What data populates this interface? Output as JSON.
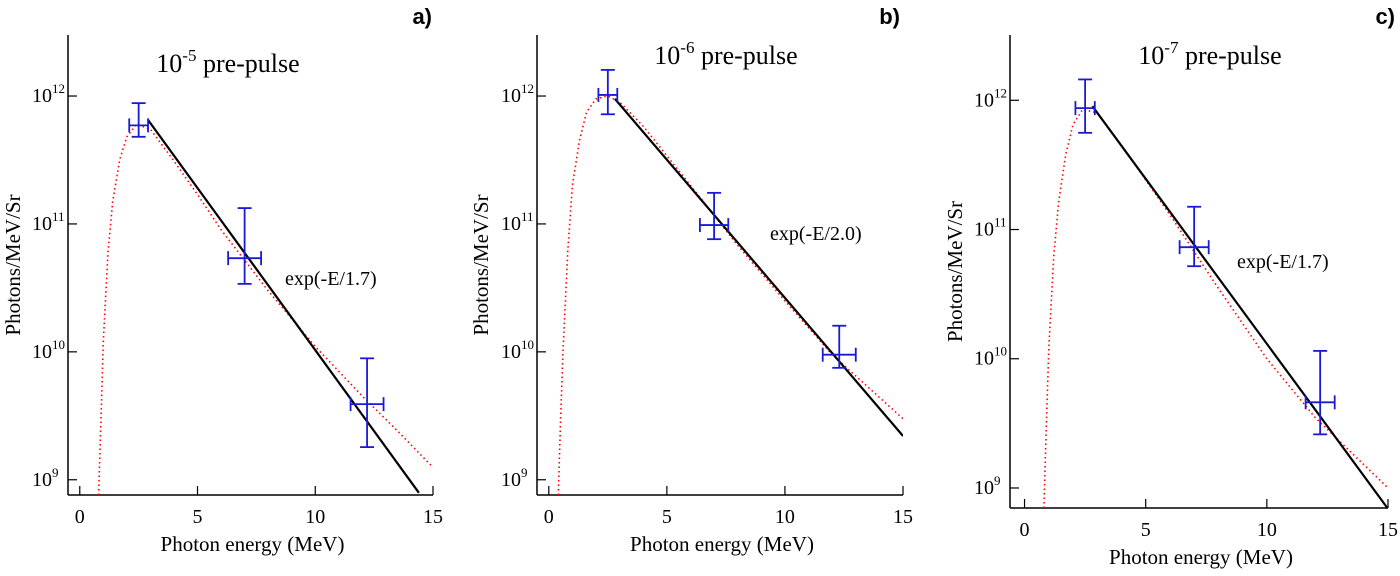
{
  "chart_data": [
    {
      "type": "line",
      "panel_label": "a)",
      "title": {
        "base": "10",
        "sup": "-5",
        "text": " pre-pulse"
      },
      "x_label": "Photon energy (MeV)",
      "y_label": "Photons/MeV/Sr",
      "ylog": true,
      "xlim": [
        -0.5,
        15
      ],
      "xticks": [
        0,
        5,
        10,
        15
      ],
      "ylim": [
        760000000,
        3000000000000
      ],
      "yticks": [
        {
          "value": 1000000000,
          "label": "10",
          "sup": "9"
        },
        {
          "value": 10000000000,
          "label": "10",
          "sup": "10"
        },
        {
          "value": 100000000000,
          "label": "10",
          "sup": "11"
        },
        {
          "value": 1000000000000,
          "label": "10",
          "sup": "12"
        }
      ],
      "points": {
        "color": "#1a1ad6",
        "x": [
          2.5,
          7,
          12.2
        ],
        "x_error": [
          0.4,
          0.7,
          0.7
        ],
        "y": [
          590000000000,
          54000000000,
          3900000000
        ],
        "y_lower": [
          480000000000,
          34000000000,
          1800000000
        ],
        "y_upper": [
          880000000000,
          133000000000,
          8900000000
        ]
      },
      "fit": {
        "color": "#000000",
        "label": "exp(-E/1.7)",
        "x": [
          2.9,
          14.4
        ],
        "y": [
          650000000000,
          790000000
        ]
      },
      "model": {
        "color": "#ff0000",
        "x": [
          0.8,
          0.9,
          1.0,
          1.2,
          1.4,
          1.7,
          2.0,
          2.4,
          3,
          4,
          5,
          6,
          8,
          10,
          12,
          13.5,
          15
        ],
        "y": [
          760000000,
          3000000000,
          12000000000,
          60000000000,
          150000000000,
          320000000000,
          480000000000,
          600000000000,
          550000000000,
          310000000000,
          170000000000,
          90000000000,
          30000000000,
          11000000000,
          4500000000,
          2400000000,
          1250000000
        ]
      }
    },
    {
      "type": "line",
      "panel_label": "b)",
      "title": {
        "base": "10",
        "sup": "-6",
        "text": " pre-pulse"
      },
      "x_label": "Photon energy (MeV)",
      "y_label": "Photons/MeV/Sr",
      "ylog": true,
      "xlim": [
        -0.5,
        15
      ],
      "xticks": [
        0,
        5,
        10,
        15
      ],
      "ylim": [
        760000000,
        3000000000000
      ],
      "yticks": [
        {
          "value": 1000000000,
          "label": "10",
          "sup": "9"
        },
        {
          "value": 10000000000,
          "label": "10",
          "sup": "10"
        },
        {
          "value": 100000000000,
          "label": "10",
          "sup": "11"
        },
        {
          "value": 1000000000000,
          "label": "10",
          "sup": "12"
        }
      ],
      "points": {
        "color": "#1a1ad6",
        "x": [
          2.5,
          7,
          12.3
        ],
        "x_error": [
          0.4,
          0.6,
          0.7
        ],
        "y": [
          1020000000000,
          98000000000,
          9500000000
        ],
        "y_lower": [
          720000000000,
          76000000000,
          7500000000
        ],
        "y_upper": [
          1600000000000,
          175000000000,
          16000000000
        ]
      },
      "fit": {
        "color": "#000000",
        "label": "exp(-E/2.0)",
        "x": [
          2.8,
          15
        ],
        "y": [
          950000000000,
          2200000000
        ]
      },
      "model": {
        "color": "#ff0000",
        "x": [
          0.4,
          0.5,
          0.6,
          0.8,
          1.0,
          1.3,
          1.6,
          2.0,
          2.5,
          3,
          4,
          6,
          8,
          10,
          12,
          15
        ],
        "y": [
          760000000,
          3000000000,
          10000000000,
          60000000000,
          200000000000,
          450000000000,
          750000000000,
          950000000000,
          1000000000000,
          900000000000,
          580000000000,
          200000000000,
          68000000000,
          25000000000,
          9500000000,
          3000000000
        ]
      }
    },
    {
      "type": "line",
      "panel_label": "c)",
      "title": {
        "base": "10",
        "sup": "-7",
        "text": " pre-pulse"
      },
      "x_label": "Photon energy (MeV)",
      "y_label": "Photons/MeV/Sr",
      "ylog": true,
      "xlim": [
        -0.6,
        15
      ],
      "xticks": [
        0,
        5,
        10,
        15
      ],
      "ylim": [
        700000000,
        3200000000000
      ],
      "yticks": [
        {
          "value": 1000000000,
          "label": "10",
          "sup": "9"
        },
        {
          "value": 10000000000,
          "label": "10",
          "sup": "10"
        },
        {
          "value": 100000000000,
          "label": "10",
          "sup": "11"
        },
        {
          "value": 1000000000000,
          "label": "10",
          "sup": "12"
        }
      ],
      "points": {
        "color": "#1a1ad6",
        "x": [
          2.5,
          7,
          12.2
        ],
        "x_error": [
          0.4,
          0.6,
          0.6
        ],
        "y": [
          870000000000,
          73000000000,
          4600000000
        ],
        "y_lower": [
          560000000000,
          52000000000,
          2600000000
        ],
        "y_upper": [
          1450000000000,
          150000000000,
          11500000000
        ]
      },
      "fit": {
        "color": "#000000",
        "label": "exp(-E/1.7)",
        "x": [
          2.8,
          15
        ],
        "y": [
          900000000000,
          690000000
        ]
      },
      "model": {
        "color": "#ff0000",
        "x": [
          0.8,
          0.9,
          1.0,
          1.2,
          1.4,
          1.7,
          2.0,
          2.4,
          3,
          4,
          6,
          8,
          10,
          12,
          15
        ],
        "y": [
          700000000,
          3000000000,
          12000000000,
          60000000000,
          160000000000,
          380000000000,
          650000000000,
          850000000000,
          800000000000,
          450000000000,
          130000000000,
          35000000000,
          10000000000,
          3500000000,
          1000000000
        ]
      }
    }
  ]
}
